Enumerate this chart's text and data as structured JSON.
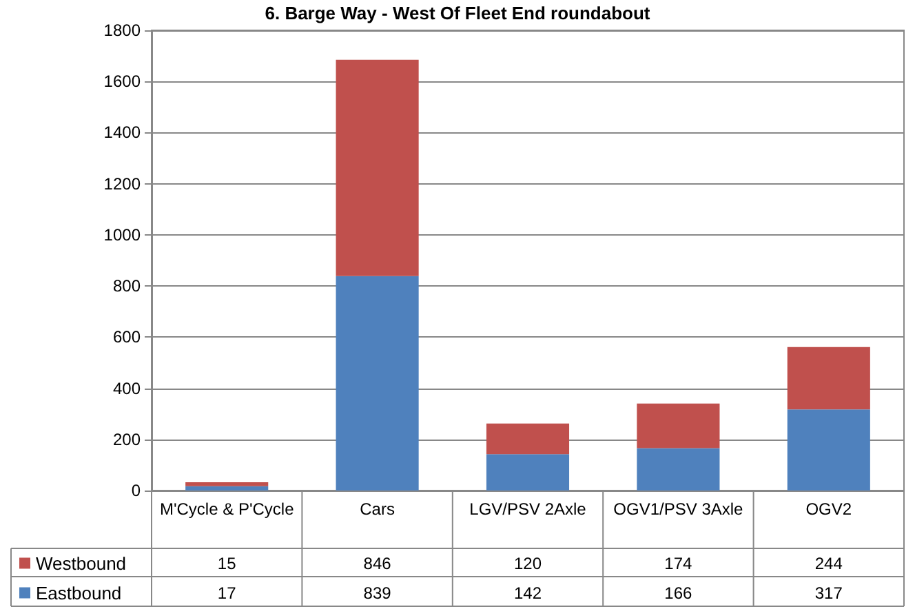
{
  "chart_data": {
    "type": "bar",
    "title": "6. Barge Way - West Of Fleet End roundabout",
    "categories": [
      "M'Cycle & P'Cycle",
      "Cars",
      "LGV/PSV 2Axle",
      "OGV1/PSV 3Axle",
      "OGV2"
    ],
    "stacked": true,
    "data_labels": true,
    "grid": "y",
    "legend": "bottom left",
    "ylim": [
      0,
      1800
    ],
    "yticks": [
      0,
      200,
      400,
      600,
      800,
      1000,
      1200,
      1400,
      1600,
      1800
    ],
    "series": [
      {
        "name": "Eastbound",
        "color": "#4f81bd",
        "values": [
          17,
          839,
          142,
          166,
          317
        ]
      },
      {
        "name": "Westbound",
        "color": "#c0504d",
        "values": [
          15,
          846,
          120,
          174,
          244
        ]
      }
    ]
  }
}
